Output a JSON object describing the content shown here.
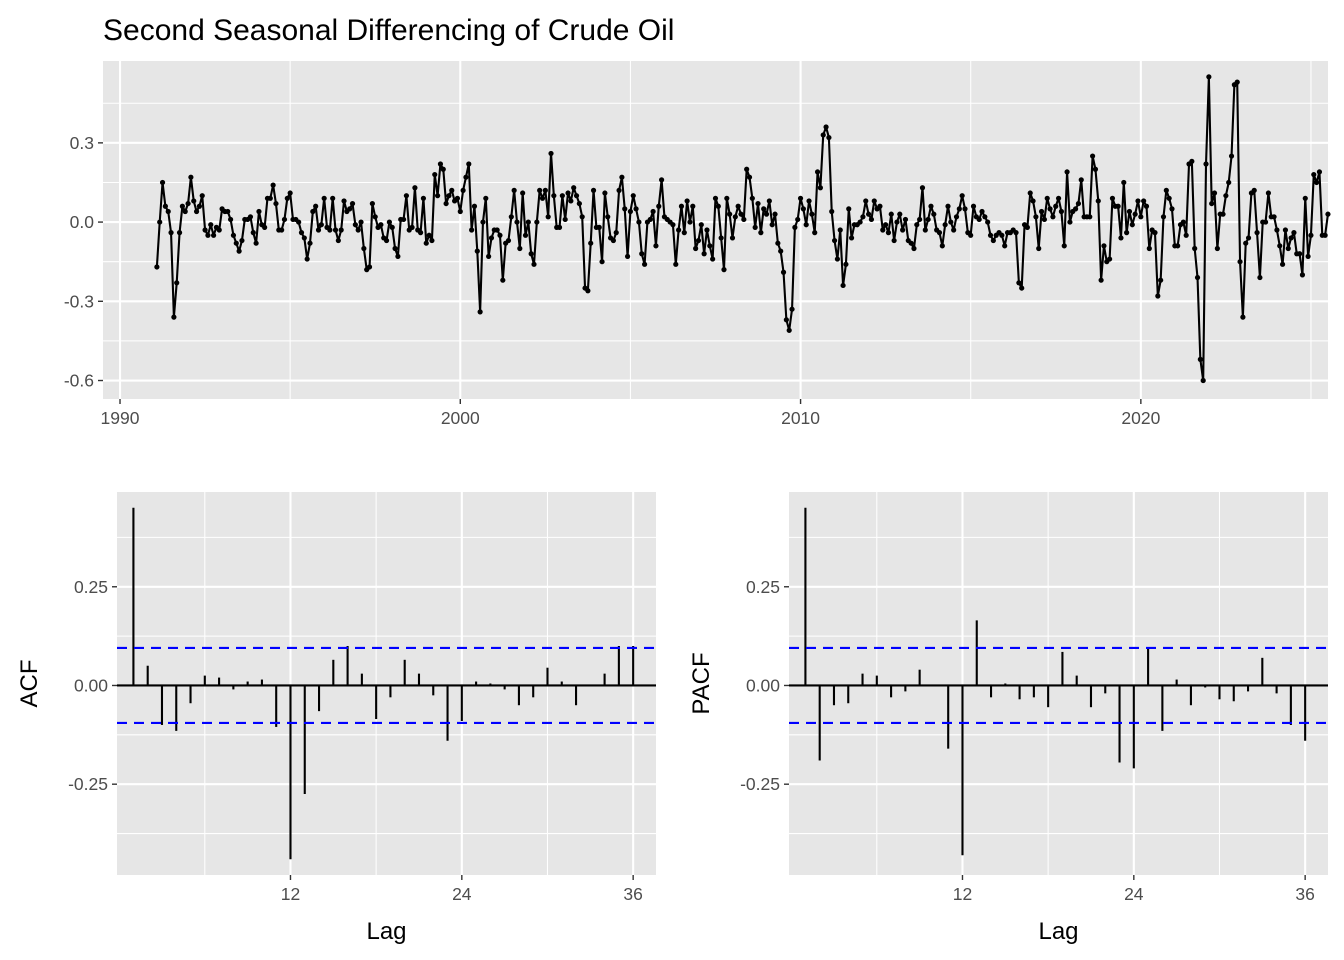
{
  "chart_data": [
    {
      "type": "line",
      "title": "Second Seasonal Differencing of Crude Oil",
      "xlabel": "",
      "ylabel": "",
      "x_ticks": [
        1990,
        2000,
        2010,
        2020
      ],
      "x_tick_labels": [
        "1990",
        "2000",
        "2010",
        "2020"
      ],
      "y_ticks": [
        -0.6,
        -0.3,
        0.0,
        0.3
      ],
      "y_tick_labels": [
        "-0.6",
        "-0.3",
        "0.0",
        "0.3"
      ],
      "xlim": [
        1989.5,
        2025.5
      ],
      "ylim": [
        -0.67,
        0.61
      ],
      "grid": true,
      "start_year": 1991.0833,
      "step": 0.08333,
      "series": [
        {
          "values": [
            -0.17,
            0.0,
            0.15,
            0.06,
            0.04,
            -0.04,
            -0.36,
            -0.23,
            -0.04,
            0.06,
            0.04,
            0.07,
            0.17,
            0.08,
            0.04,
            0.06,
            0.1,
            -0.03,
            -0.05,
            -0.01,
            -0.05,
            -0.02,
            -0.03,
            0.05,
            0.04,
            0.04,
            0.01,
            -0.05,
            -0.08,
            -0.11,
            -0.07,
            0.01,
            0.01,
            0.02,
            -0.04,
            -0.08,
            0.04,
            -0.01,
            -0.02,
            0.09,
            0.09,
            0.14,
            0.07,
            -0.03,
            -0.03,
            0.01,
            0.09,
            0.11,
            0.01,
            0.01,
            0.0,
            -0.04,
            -0.06,
            -0.14,
            -0.08,
            0.04,
            0.06,
            -0.03,
            -0.01,
            0.09,
            -0.02,
            -0.03,
            0.09,
            -0.03,
            -0.07,
            -0.03,
            0.08,
            0.04,
            0.05,
            0.07,
            -0.01,
            -0.03,
            0.0,
            -0.1,
            -0.18,
            -0.17,
            0.07,
            0.02,
            -0.02,
            -0.01,
            -0.06,
            -0.07,
            0.0,
            -0.02,
            -0.1,
            -0.13,
            0.01,
            0.01,
            0.1,
            -0.03,
            -0.02,
            0.13,
            -0.03,
            -0.04,
            0.09,
            -0.08,
            -0.05,
            -0.07,
            0.18,
            0.1,
            0.22,
            0.2,
            0.07,
            0.1,
            0.12,
            0.08,
            0.09,
            0.04,
            0.12,
            0.17,
            0.22,
            -0.03,
            0.06,
            -0.11,
            -0.34,
            0.0,
            0.09,
            -0.13,
            -0.06,
            -0.03,
            -0.03,
            -0.05,
            -0.22,
            -0.08,
            -0.07,
            0.02,
            0.12,
            0.0,
            -0.1,
            0.11,
            -0.05,
            0.0,
            -0.12,
            -0.16,
            0.0,
            0.12,
            0.09,
            0.12,
            0.02,
            0.26,
            0.1,
            -0.02,
            -0.02,
            0.1,
            0.01,
            0.11,
            0.08,
            0.13,
            0.1,
            0.07,
            0.02,
            -0.25,
            -0.26,
            -0.08,
            0.12,
            -0.02,
            -0.02,
            -0.15,
            0.11,
            0.02,
            -0.06,
            -0.07,
            -0.04,
            0.12,
            0.17,
            0.05,
            -0.13,
            0.04,
            0.1,
            0.05,
            0.0,
            -0.12,
            -0.16,
            0.0,
            0.01,
            0.04,
            -0.09,
            0.06,
            0.16,
            0.02,
            0.01,
            0.0,
            -0.01,
            -0.16,
            -0.03,
            0.06,
            -0.04,
            0.08,
            0.0,
            0.06,
            -0.1,
            -0.07,
            -0.01,
            -0.12,
            -0.03,
            -0.09,
            -0.14,
            0.09,
            0.06,
            -0.06,
            -0.18,
            0.09,
            0.03,
            -0.06,
            0.02,
            0.06,
            0.03,
            0.01,
            0.2,
            0.17,
            0.09,
            -0.02,
            0.07,
            -0.04,
            0.05,
            0.03,
            0.08,
            -0.01,
            0.03,
            -0.08,
            -0.11,
            -0.19,
            -0.37,
            -0.41,
            -0.33,
            -0.02,
            0.01,
            0.09,
            0.05,
            -0.01,
            0.08,
            0.03,
            -0.04,
            0.19,
            0.13,
            0.33,
            0.36,
            0.32,
            0.04,
            -0.07,
            -0.14,
            -0.03,
            -0.24,
            -0.16,
            0.05,
            -0.06,
            -0.01,
            -0.01,
            0.0,
            0.02,
            0.08,
            0.03,
            0.01,
            0.08,
            0.05,
            0.06,
            -0.03,
            -0.01,
            -0.04,
            0.03,
            -0.07,
            0.0,
            0.03,
            -0.03,
            0.01,
            -0.07,
            -0.08,
            -0.1,
            -0.01,
            0.01,
            0.13,
            -0.03,
            0.01,
            0.06,
            0.03,
            -0.03,
            -0.04,
            -0.09,
            -0.01,
            0.06,
            0.0,
            -0.03,
            0.02,
            0.05,
            0.1,
            0.05,
            -0.04,
            -0.05,
            0.06,
            0.02,
            0.01,
            0.04,
            0.02,
            0.0,
            -0.05,
            -0.07,
            -0.05,
            -0.04,
            -0.05,
            -0.09,
            -0.04,
            -0.04,
            -0.03,
            -0.04,
            -0.23,
            -0.25,
            -0.01,
            -0.02,
            0.11,
            0.08,
            0.02,
            -0.1,
            0.04,
            0.01,
            0.09,
            0.05,
            0.02,
            0.06,
            0.09,
            0.04,
            -0.09,
            0.19,
            0.0,
            0.04,
            0.05,
            0.07,
            0.16,
            0.02,
            0.02,
            0.02,
            0.25,
            0.2,
            0.08,
            -0.22,
            -0.09,
            -0.15,
            -0.14,
            0.09,
            0.06,
            0.06,
            -0.06,
            0.15,
            -0.04,
            0.04,
            -0.01,
            0.03,
            0.08,
            0.02,
            0.08,
            0.06,
            -0.1,
            -0.03,
            -0.04,
            -0.28,
            -0.22,
            0.02,
            0.12,
            0.09,
            0.05,
            -0.09,
            -0.09,
            -0.01,
            0.0,
            -0.05,
            0.22,
            0.23,
            -0.1,
            -0.21,
            -0.52,
            -0.6,
            0.22,
            0.55,
            0.07,
            0.11,
            -0.1,
            0.03,
            0.03,
            0.1,
            0.15,
            0.25,
            0.52,
            0.53,
            -0.15,
            -0.36,
            -0.08,
            -0.06,
            0.11,
            0.12,
            -0.04,
            -0.21,
            0.0,
            0.0,
            0.11,
            0.02,
            0.02,
            -0.03,
            -0.09,
            -0.16,
            -0.03,
            -0.1,
            -0.06,
            -0.04,
            -0.12,
            -0.12,
            -0.2,
            0.09,
            -0.13,
            -0.05,
            0.18,
            0.15,
            0.19,
            -0.05,
            -0.05,
            0.03
          ]
        }
      ]
    },
    {
      "type": "bar",
      "xlabel": "Lag",
      "ylabel": "ACF",
      "lags": [
        1,
        2,
        3,
        4,
        5,
        6,
        7,
        8,
        9,
        10,
        11,
        12,
        13,
        14,
        15,
        16,
        17,
        18,
        19,
        20,
        21,
        22,
        23,
        24,
        25,
        26,
        27,
        28,
        29,
        30,
        31,
        32,
        33,
        34,
        35,
        36
      ],
      "values": [
        0.45,
        0.05,
        -0.1,
        -0.115,
        -0.045,
        0.025,
        0.02,
        -0.01,
        0.01,
        0.015,
        -0.105,
        -0.44,
        -0.275,
        -0.065,
        0.065,
        0.1,
        0.03,
        -0.085,
        -0.03,
        0.065,
        0.03,
        -0.025,
        -0.14,
        -0.09,
        0.01,
        0.005,
        -0.01,
        -0.05,
        -0.03,
        0.045,
        0.01,
        -0.05,
        0.0,
        0.03,
        0.1,
        0.1
      ],
      "ci": [
        -0.095,
        0.095
      ],
      "x_ticks": [
        12,
        24,
        36
      ],
      "x_tick_labels": [
        "12",
        "24",
        "36"
      ],
      "y_ticks": [
        -0.25,
        0.0,
        0.25
      ],
      "y_tick_labels": [
        "-0.25",
        "0.00",
        "0.25"
      ],
      "xlim": [
        -0.15,
        37.6
      ],
      "ylim": [
        -0.48,
        0.49
      ],
      "grid": true
    },
    {
      "type": "bar",
      "xlabel": "Lag",
      "ylabel": "PACF",
      "lags": [
        1,
        2,
        3,
        4,
        5,
        6,
        7,
        8,
        9,
        10,
        11,
        12,
        13,
        14,
        15,
        16,
        17,
        18,
        19,
        20,
        21,
        22,
        23,
        24,
        25,
        26,
        27,
        28,
        29,
        30,
        31,
        32,
        33,
        34,
        35,
        36
      ],
      "values": [
        0.45,
        -0.19,
        -0.05,
        -0.045,
        0.03,
        0.025,
        -0.03,
        -0.015,
        0.04,
        0.0,
        -0.16,
        -0.43,
        0.165,
        -0.03,
        0.005,
        -0.035,
        -0.03,
        -0.055,
        0.085,
        0.025,
        -0.055,
        -0.02,
        -0.195,
        -0.21,
        0.095,
        -0.115,
        0.015,
        -0.05,
        -0.005,
        -0.035,
        -0.04,
        -0.015,
        0.07,
        -0.02,
        -0.1,
        -0.14
      ],
      "ci": [
        -0.095,
        0.095
      ],
      "x_ticks": [
        12,
        24,
        36
      ],
      "x_tick_labels": [
        "12",
        "24",
        "36"
      ],
      "y_ticks": [
        -0.25,
        0.0,
        0.25
      ],
      "y_tick_labels": [
        "-0.25",
        "0.00",
        "0.25"
      ],
      "xlim": [
        -0.15,
        37.6
      ],
      "ylim": [
        -0.48,
        0.49
      ],
      "grid": true
    }
  ]
}
